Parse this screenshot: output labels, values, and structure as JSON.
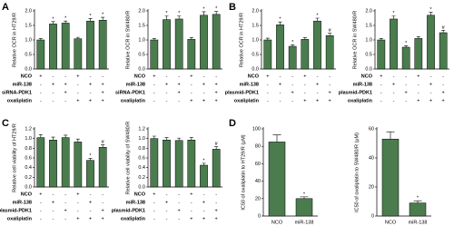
{
  "panel_labels": [
    "A",
    "B",
    "C",
    "D"
  ],
  "chart_data": [
    {
      "type": "bar",
      "ylabel": "Relative OCR in HT29/R",
      "color": "#4a7c4e",
      "ylim": [
        0,
        2.0
      ],
      "yticks": [
        {
          "value": 0,
          "label": "0.0"
        },
        0.5,
        {
          "value": 1,
          "label": "1.0"
        },
        1.5,
        {
          "value": 2,
          "label": "2.0"
        }
      ],
      "values": [
        1.0,
        1.55,
        1.58,
        1.04,
        1.65,
        1.68
      ],
      "errors": [
        0.05,
        0.08,
        0.07,
        0.05,
        0.09,
        0.1
      ],
      "annotations": [
        null,
        "*",
        "*",
        null,
        "*",
        "*"
      ],
      "rows": [
        {
          "label": "NCO",
          "signs": [
            "+",
            "-",
            "-",
            "+",
            "-",
            "-"
          ]
        },
        {
          "label": "miR-138",
          "signs": [
            "-",
            "+",
            "+",
            "-",
            "+",
            "+"
          ]
        },
        {
          "label": "siRNA-PDK1",
          "signs": [
            "-",
            "-",
            "+",
            "-",
            "-",
            "+"
          ]
        },
        {
          "label": "oxaliplatin",
          "signs": [
            "-",
            "-",
            "-",
            "+",
            "+",
            "+"
          ]
        }
      ]
    },
    {
      "type": "bar",
      "ylabel": "Relative OCR in SW480/R",
      "color": "#4a7c4e",
      "ylim": [
        0,
        2.0
      ],
      "yticks": [
        {
          "value": 0,
          "label": "0.0"
        },
        0.5,
        {
          "value": 1,
          "label": "1.0"
        },
        1.5,
        {
          "value": 2,
          "label": "2.0"
        }
      ],
      "values": [
        1.0,
        1.7,
        1.72,
        1.02,
        1.85,
        1.88
      ],
      "errors": [
        0.05,
        0.12,
        0.1,
        0.06,
        0.12,
        0.1
      ],
      "annotations": [
        null,
        "*",
        "*",
        null,
        "*",
        "*"
      ],
      "rows": [
        {
          "label": "NCO",
          "signs": [
            "+",
            "-",
            "-",
            "+",
            "-",
            "-"
          ]
        },
        {
          "label": "miR-138",
          "signs": [
            "-",
            "+",
            "+",
            "-",
            "+",
            "+"
          ]
        },
        {
          "label": "siRNA-PDK1",
          "signs": [
            "-",
            "-",
            "+",
            "-",
            "-",
            "+"
          ]
        },
        {
          "label": "oxaliplatin",
          "signs": [
            "-",
            "-",
            "-",
            "+",
            "+",
            "+"
          ]
        }
      ]
    },
    {
      "type": "bar",
      "ylabel": "Relative OCR in HT29/R",
      "color": "#4a7c4e",
      "ylim": [
        0,
        2.0
      ],
      "yticks": [
        {
          "value": 0,
          "label": "0.0"
        },
        0.5,
        {
          "value": 1,
          "label": "1.0"
        },
        1.5,
        {
          "value": 2,
          "label": "2.0"
        }
      ],
      "values": [
        1.0,
        1.52,
        0.78,
        1.02,
        1.65,
        1.15
      ],
      "errors": [
        0.06,
        0.1,
        0.05,
        0.06,
        0.1,
        0.08
      ],
      "annotations": [
        null,
        "*",
        "*",
        null,
        "*",
        "#"
      ],
      "rows": [
        {
          "label": "NCO",
          "signs": [
            "+",
            "-",
            "-",
            "+",
            "-",
            "-"
          ]
        },
        {
          "label": "miR-138",
          "signs": [
            "-",
            "+",
            "-",
            "-",
            "+",
            "-"
          ]
        },
        {
          "label": "plasmid-PDK1",
          "signs": [
            "-",
            "-",
            "+",
            "-",
            "-",
            "+"
          ]
        },
        {
          "label": "oxaliplatin",
          "signs": [
            "-",
            "-",
            "-",
            "+",
            "+",
            "+"
          ]
        }
      ]
    },
    {
      "type": "bar",
      "ylabel": "Relative OCR in SW480/R",
      "color": "#4a7c4e",
      "ylim": [
        0,
        2.0
      ],
      "yticks": [
        {
          "value": 0,
          "label": "0.0"
        },
        0.5,
        {
          "value": 1,
          "label": "1.0"
        },
        1.5,
        {
          "value": 2,
          "label": "2.0"
        }
      ],
      "values": [
        1.0,
        1.72,
        0.75,
        1.05,
        1.85,
        1.25
      ],
      "errors": [
        0.05,
        0.1,
        0.05,
        0.06,
        0.1,
        0.08
      ],
      "annotations": [
        null,
        "*",
        "*",
        null,
        "*",
        "#"
      ],
      "rows": [
        {
          "label": "NCO",
          "signs": [
            "+",
            "-",
            "-",
            "+",
            "-",
            "-"
          ]
        },
        {
          "label": "miR-138",
          "signs": [
            "-",
            "+",
            "-",
            "-",
            "+",
            "-"
          ]
        },
        {
          "label": "plasmid-PDK1",
          "signs": [
            "-",
            "-",
            "+",
            "-",
            "-",
            "+"
          ]
        },
        {
          "label": "oxaliplatin",
          "signs": [
            "-",
            "-",
            "-",
            "+",
            "+",
            "+"
          ]
        }
      ]
    },
    {
      "type": "bar",
      "ylabel": "Relative cell viability of HT29/R",
      "color": "#4a7c4e",
      "ylim": [
        0,
        1.2
      ],
      "yticks": [
        {
          "value": 0,
          "label": "0.0"
        },
        0.2,
        0.4,
        0.6,
        0.8,
        {
          "value": 1,
          "label": "1.0"
        },
        1.2
      ],
      "values": [
        1.02,
        0.97,
        1.02,
        0.93,
        0.55,
        0.82
      ],
      "errors": [
        0.06,
        0.06,
        0.05,
        0.06,
        0.04,
        0.05
      ],
      "annotations": [
        null,
        null,
        null,
        null,
        "*",
        "#"
      ],
      "rows": [
        {
          "label": "NCO",
          "signs": [
            "+",
            "-",
            "-",
            "+",
            "-",
            "-"
          ]
        },
        {
          "label": "miR-138",
          "signs": [
            "-",
            "+",
            "-",
            "-",
            "+",
            "-"
          ]
        },
        {
          "label": "plasmid-PDK1",
          "signs": [
            "-",
            "-",
            "+",
            "-",
            "-",
            "+"
          ]
        },
        {
          "label": "oxaliplatin",
          "signs": [
            "-",
            "-",
            "-",
            "+",
            "+",
            "+"
          ]
        }
      ]
    },
    {
      "type": "bar",
      "ylabel": "Relative cell viability of SW480/R",
      "color": "#4a7c4e",
      "ylim": [
        0,
        1.2
      ],
      "yticks": [
        {
          "value": 0,
          "label": "0.0"
        },
        0.2,
        0.4,
        0.6,
        0.8,
        {
          "value": 1,
          "label": "1.0"
        },
        1.2
      ],
      "values": [
        1.0,
        0.97,
        0.96,
        0.97,
        0.45,
        0.78
      ],
      "errors": [
        0.05,
        0.05,
        0.05,
        0.05,
        0.04,
        0.05
      ],
      "annotations": [
        null,
        null,
        null,
        null,
        "*",
        "#"
      ],
      "rows": [
        {
          "label": "NCO",
          "signs": [
            "+",
            "-",
            "-",
            "+",
            "-",
            "-"
          ]
        },
        {
          "label": "miR-138",
          "signs": [
            "-",
            "+",
            "-",
            "-",
            "+",
            "-"
          ]
        },
        {
          "label": "plasmid-PDK1",
          "signs": [
            "-",
            "-",
            "+",
            "-",
            "-",
            "+"
          ]
        },
        {
          "label": "oxaliplatin",
          "signs": [
            "-",
            "-",
            "-",
            "+",
            "+",
            "+"
          ]
        }
      ]
    },
    {
      "type": "bar",
      "ylabel": "IC50 of oxaliplatin to HT29/R (μM)",
      "color": "#4a7c4e",
      "ylim": [
        0,
        100
      ],
      "yticks": [
        0,
        20,
        40,
        60,
        80,
        100
      ],
      "categories": [
        "NCO",
        "miR-138"
      ],
      "values": [
        85,
        20
      ],
      "errors": [
        8,
        2
      ],
      "annotations": [
        null,
        "*"
      ]
    },
    {
      "type": "bar",
      "ylabel": "IC50 of oxaliplatin to SW480/R (μM)",
      "color": "#4a7c4e",
      "ylim": [
        0,
        60
      ],
      "yticks": [
        0,
        20,
        40,
        60
      ],
      "categories": [
        "NCO",
        "miR-138"
      ],
      "values": [
        53,
        9
      ],
      "errors": [
        5,
        1.5
      ],
      "annotations": [
        null,
        "*"
      ]
    }
  ]
}
